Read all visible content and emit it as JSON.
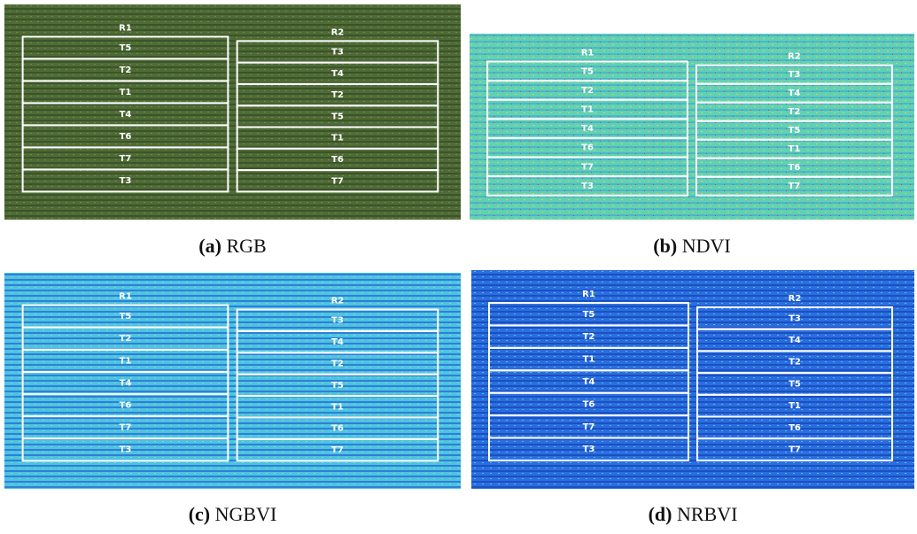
{
  "figure": {
    "panels": [
      {
        "label": "(a)",
        "name": "RGB",
        "replicates": [
          {
            "name": "R1",
            "plots": [
              "T5",
              "T2",
              "T1",
              "T4",
              "T6",
              "T7",
              "T3"
            ]
          },
          {
            "name": "R2",
            "plots": [
              "T3",
              "T4",
              "T2",
              "T5",
              "T1",
              "T6",
              "T7"
            ]
          }
        ]
      },
      {
        "label": "(b)",
        "name": "NDVI",
        "replicates": [
          {
            "name": "R1",
            "plots": [
              "T5",
              "T2",
              "T1",
              "T4",
              "T6",
              "T7",
              "T3"
            ]
          },
          {
            "name": "R2",
            "plots": [
              "T3",
              "T4",
              "T2",
              "T5",
              "T1",
              "T6",
              "T7"
            ]
          }
        ]
      },
      {
        "label": "(c)",
        "name": "NGBVI",
        "replicates": [
          {
            "name": "R1",
            "plots": [
              "T5",
              "T2",
              "T1",
              "T4",
              "T6",
              "T7",
              "T3"
            ]
          },
          {
            "name": "R2",
            "plots": [
              "T3",
              "T4",
              "T2",
              "T5",
              "T1",
              "T6",
              "T7"
            ]
          }
        ]
      },
      {
        "label": "(d)",
        "name": "NRBVI",
        "replicates": [
          {
            "name": "R1",
            "plots": [
              "T5",
              "T2",
              "T1",
              "T4",
              "T6",
              "T7",
              "T3"
            ]
          },
          {
            "name": "R2",
            "plots": [
              "T3",
              "T4",
              "T2",
              "T5",
              "T1",
              "T6",
              "T7"
            ]
          }
        ]
      }
    ]
  }
}
